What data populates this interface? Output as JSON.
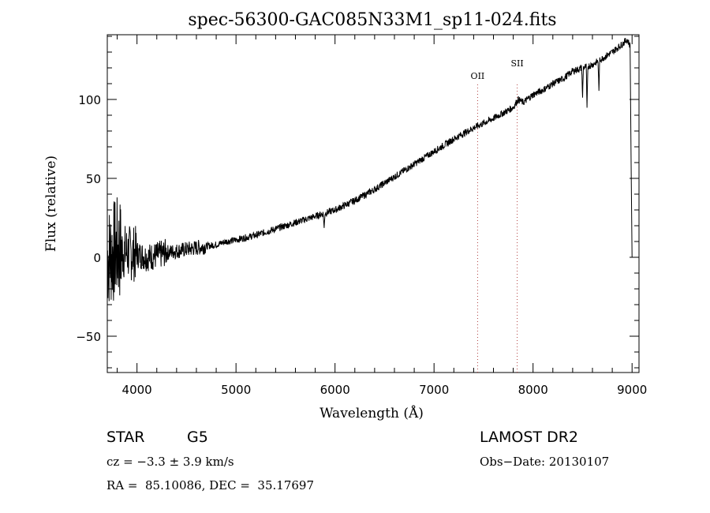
{
  "chart_data": {
    "type": "line",
    "title": "spec-56300-GAC085N33M1_sp11-024.fits",
    "xlabel": "Wavelength (Å)",
    "ylabel": "Flux (relative)",
    "xlim": [
      3700,
      9070
    ],
    "ylim": [
      -73,
      141
    ],
    "x_ticks": [
      4000,
      5000,
      6000,
      7000,
      8000,
      9000
    ],
    "y_ticks": [
      -50,
      0,
      50,
      100
    ],
    "grid": false,
    "legend": "none",
    "series": [
      {
        "x": [
          3700,
          3800,
          3900,
          4000,
          4100,
          4200,
          4300,
          4400,
          4500,
          4600,
          4700,
          4800,
          4900,
          5000,
          5200,
          5400,
          5600,
          5800,
          6000,
          6200,
          6400,
          6600,
          6800,
          7000,
          7200,
          7400,
          7600,
          7800,
          7850,
          7900,
          8000,
          8100,
          8200,
          8300,
          8400,
          8500,
          8600,
          8700,
          8800,
          8900,
          8950,
          8980,
          9000
        ],
        "y": [
          0,
          5,
          3,
          2,
          0,
          1,
          3,
          4,
          5,
          6,
          7,
          8,
          10,
          11,
          14,
          18,
          22,
          26,
          30,
          36,
          43,
          51,
          59,
          67,
          75,
          82,
          88,
          95,
          100,
          98,
          103,
          106,
          110,
          113,
          118,
          120,
          122,
          126,
          130,
          135,
          138,
          134,
          0
        ]
      }
    ],
    "lines": [
      {
        "label": "OII",
        "x": 7440
      },
      {
        "label": "SII",
        "x": 7840
      }
    ],
    "absorption": [
      {
        "x": 5890,
        "depth": 10
      },
      {
        "x": 8500,
        "depth": 20
      },
      {
        "x": 8545,
        "depth": 28
      },
      {
        "x": 8665,
        "depth": 20
      }
    ]
  },
  "info": {
    "type_label": "STAR",
    "subclass": "G5",
    "survey": "LAMOST DR2",
    "cz": "cz = −3.3 ± 3.9 km/s",
    "obs_date": "Obs−Date: 20130107",
    "radec": "RA =  85.10086, DEC =  35.17697"
  }
}
